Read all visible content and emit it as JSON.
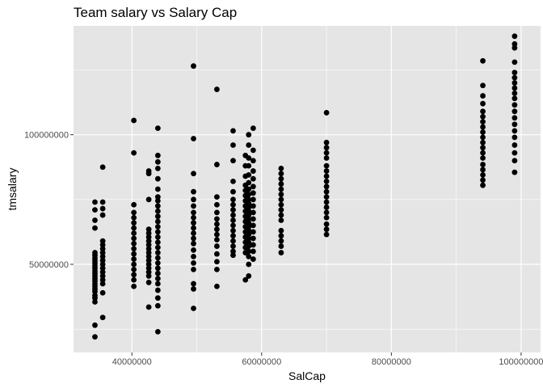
{
  "chart_data": {
    "type": "scatter",
    "title": "Team salary vs Salary Cap",
    "xlabel": "SalCap",
    "ylabel": "tmsalary",
    "xlim": [
      31000000,
      103000000
    ],
    "ylim": [
      16000000,
      142000000
    ],
    "x_ticks": [
      40000000,
      60000000,
      80000000,
      100000000
    ],
    "x_tick_labels": [
      "40000000",
      "60000000",
      "80000000",
      "100000000"
    ],
    "y_ticks": [
      50000000,
      100000000
    ],
    "y_tick_labels": [
      "50000000",
      "100000000"
    ],
    "grid": true,
    "legend": "none",
    "colors": {
      "panel": "#e5e5e5",
      "grid": "#ffffff",
      "point": "#000000"
    },
    "groups": [
      {
        "x": 34300000,
        "y": [
          22000000,
          26500000,
          35500000,
          37000000,
          38000000,
          39500000,
          40500000,
          41500000,
          42500000,
          43500000,
          44500000,
          45500000,
          46500000,
          47500000,
          48500000,
          49500000,
          50500000,
          51500000,
          52500000,
          53500000,
          54500000,
          64000000,
          67000000,
          71000000,
          74000000
        ]
      },
      {
        "x": 35500000,
        "y": [
          29500000,
          39000000,
          42500000,
          44000000,
          45500000,
          47000000,
          48500000,
          50000000,
          51500000,
          53000000,
          54500000,
          56000000,
          57500000,
          59000000,
          69000000,
          71500000,
          74000000,
          87500000
        ]
      },
      {
        "x": 40300000,
        "y": [
          41500000,
          44000000,
          46000000,
          48000000,
          50000000,
          52000000,
          54000000,
          56000000,
          58000000,
          60000000,
          62000000,
          64000000,
          66000000,
          68000000,
          70000000,
          73000000,
          93000000,
          105500000
        ]
      },
      {
        "x": 42600000,
        "y": [
          33500000,
          43000000,
          45500000,
          47000000,
          48500000,
          50000000,
          51500000,
          53000000,
          54500000,
          56000000,
          57500000,
          59000000,
          60500000,
          62000000,
          63500000,
          75000000,
          85000000,
          86000000
        ]
      },
      {
        "x": 44000000,
        "y": [
          24000000,
          34000000,
          37000000,
          40000000,
          42500000,
          44500000,
          46500000,
          48500000,
          50500000,
          52500000,
          54500000,
          56500000,
          58500000,
          60500000,
          62500000,
          64500000,
          66500000,
          68500000,
          70500000,
          72500000,
          74500000,
          76000000,
          79000000,
          83000000,
          87000000,
          89500000,
          92000000,
          102500000
        ]
      },
      {
        "x": 49500000,
        "y": [
          33000000,
          40500000,
          42500000,
          48000000,
          50500000,
          53000000,
          55500000,
          58000000,
          60000000,
          62000000,
          64000000,
          66000000,
          68000000,
          70000000,
          72500000,
          75000000,
          78000000,
          85000000,
          98500000,
          126500000
        ]
      },
      {
        "x": 53100000,
        "y": [
          41500000,
          48000000,
          51000000,
          54000000,
          57000000,
          59500000,
          61500000,
          63500000,
          65500000,
          67500000,
          70000000,
          73000000,
          76000000,
          88500000,
          117500000
        ]
      },
      {
        "x": 55600000,
        "y": [
          53500000,
          55000000,
          57000000,
          59000000,
          61000000,
          63000000,
          65000000,
          67000000,
          69000000,
          71000000,
          73000000,
          75000000,
          78000000,
          82000000,
          90000000,
          96000000,
          101500000
        ]
      },
      {
        "x": 57500000,
        "y": [
          44000000,
          54500000,
          56500000,
          58500000,
          60500000,
          62500000,
          64500000,
          66500000,
          68500000,
          70500000,
          72500000,
          74500000,
          76500000,
          78500000,
          80500000,
          84000000,
          88000000,
          92000000
        ]
      },
      {
        "x": 58000000,
        "y": [
          45500000,
          50000000,
          53000000,
          55000000,
          57000000,
          58500000,
          60000000,
          61500000,
          63000000,
          64500000,
          66000000,
          67500000,
          69000000,
          70500000,
          72000000,
          73500000,
          75000000,
          77000000,
          79000000,
          81500000,
          84500000,
          88000000,
          91000000,
          96000000,
          100000000
        ]
      },
      {
        "x": 58700000,
        "y": [
          52000000,
          55000000,
          57500000,
          60000000,
          62500000,
          65000000,
          67500000,
          70000000,
          72500000,
          75000000,
          77500000,
          80000000,
          83000000,
          86000000,
          90000000,
          94000000,
          102500000
        ]
      },
      {
        "x": 63000000,
        "y": [
          54500000,
          57000000,
          59000000,
          61000000,
          63000000,
          67000000,
          69000000,
          71000000,
          73000000,
          75000000,
          77000000,
          79000000,
          81000000,
          83000000,
          85000000,
          87000000
        ]
      },
      {
        "x": 70000000,
        "y": [
          61500000,
          63500000,
          65500000,
          68000000,
          70000000,
          72000000,
          74000000,
          76000000,
          78000000,
          80000000,
          82000000,
          84000000,
          86000000,
          88000000,
          91000000,
          93000000,
          95000000,
          97000000,
          108500000
        ]
      },
      {
        "x": 94100000,
        "y": [
          80500000,
          82500000,
          84500000,
          86500000,
          88500000,
          91000000,
          93000000,
          95000000,
          97000000,
          99000000,
          101000000,
          103000000,
          105000000,
          107000000,
          109000000,
          112000000,
          115000000,
          119000000,
          128500000
        ]
      },
      {
        "x": 99000000,
        "y": [
          85500000,
          90000000,
          93000000,
          96000000,
          99000000,
          101500000,
          104000000,
          106500000,
          109000000,
          111500000,
          114000000,
          116000000,
          118000000,
          120000000,
          122000000,
          124000000,
          128000000,
          133500000,
          135000000,
          138000000
        ]
      }
    ]
  }
}
